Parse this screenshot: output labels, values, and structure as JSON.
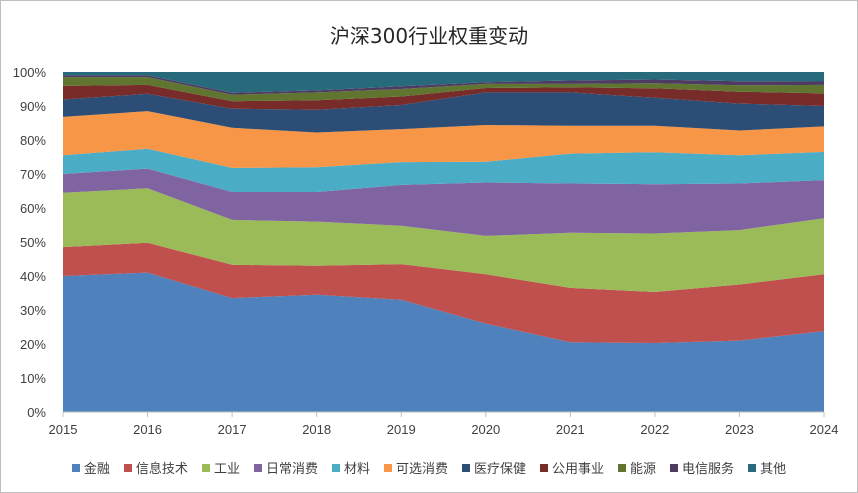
{
  "chart_data": {
    "type": "area",
    "stacked": true,
    "percent": true,
    "title": "沪深300行业权重变动",
    "categories": [
      "2015",
      "2016",
      "2017",
      "2018",
      "2019",
      "2020",
      "2021",
      "2022",
      "2023",
      "2024"
    ],
    "y_ticks": [
      "0%",
      "10%",
      "20%",
      "30%",
      "40%",
      "50%",
      "60%",
      "70%",
      "80%",
      "90%",
      "100%"
    ],
    "ylim": [
      0,
      100
    ],
    "legend_position": "bottom",
    "series": [
      {
        "name": "金融",
        "color": "#4f81bd",
        "values": [
          40.0,
          41.0,
          33.5,
          34.5,
          33.0,
          26.0,
          20.5,
          20.3,
          21.0,
          23.8
        ]
      },
      {
        "name": "信息技术",
        "color": "#c0504d",
        "values": [
          8.5,
          8.8,
          9.8,
          8.5,
          10.5,
          14.5,
          16.0,
          15.0,
          16.5,
          16.7
        ]
      },
      {
        "name": "工业",
        "color": "#9bbb59",
        "values": [
          16.0,
          16.0,
          13.2,
          13.0,
          11.3,
          11.3,
          16.2,
          17.2,
          16.0,
          16.5
        ]
      },
      {
        "name": "日常消费",
        "color": "#8064a2",
        "values": [
          5.5,
          5.8,
          8.2,
          8.7,
          12.0,
          15.7,
          14.5,
          14.5,
          13.7,
          11.2
        ]
      },
      {
        "name": "材料",
        "color": "#4bacc6",
        "values": [
          5.5,
          5.8,
          7.1,
          7.3,
          6.7,
          6.1,
          8.8,
          9.4,
          8.3,
          8.3
        ]
      },
      {
        "name": "可选消费",
        "color": "#f79646",
        "values": [
          11.3,
          11.1,
          11.8,
          10.2,
          9.7,
          10.8,
          8.2,
          7.8,
          7.3,
          7.5
        ]
      },
      {
        "name": "医疗保健",
        "color": "#2c4d75",
        "values": [
          5.1,
          5.1,
          5.6,
          6.7,
          7.1,
          9.6,
          9.8,
          8.2,
          7.9,
          6.0
        ]
      },
      {
        "name": "公用事业",
        "color": "#772c2a",
        "values": [
          4.0,
          2.6,
          2.2,
          2.8,
          2.5,
          1.3,
          1.5,
          2.8,
          3.5,
          3.7
        ]
      },
      {
        "name": "能源",
        "color": "#5f7530",
        "values": [
          2.6,
          2.3,
          1.9,
          2.3,
          2.2,
          1.2,
          1.0,
          1.5,
          1.9,
          2.5
        ]
      },
      {
        "name": "电信服务",
        "color": "#4d3b62",
        "values": [
          0.5,
          0.5,
          0.6,
          0.6,
          0.8,
          0.5,
          1.0,
          1.1,
          1.2,
          1.0
        ]
      },
      {
        "name": "其他",
        "color": "#276a7c",
        "values": [
          1.0,
          1.0,
          6.1,
          5.4,
          4.2,
          3.0,
          2.5,
          2.2,
          2.7,
          2.8
        ]
      }
    ]
  }
}
